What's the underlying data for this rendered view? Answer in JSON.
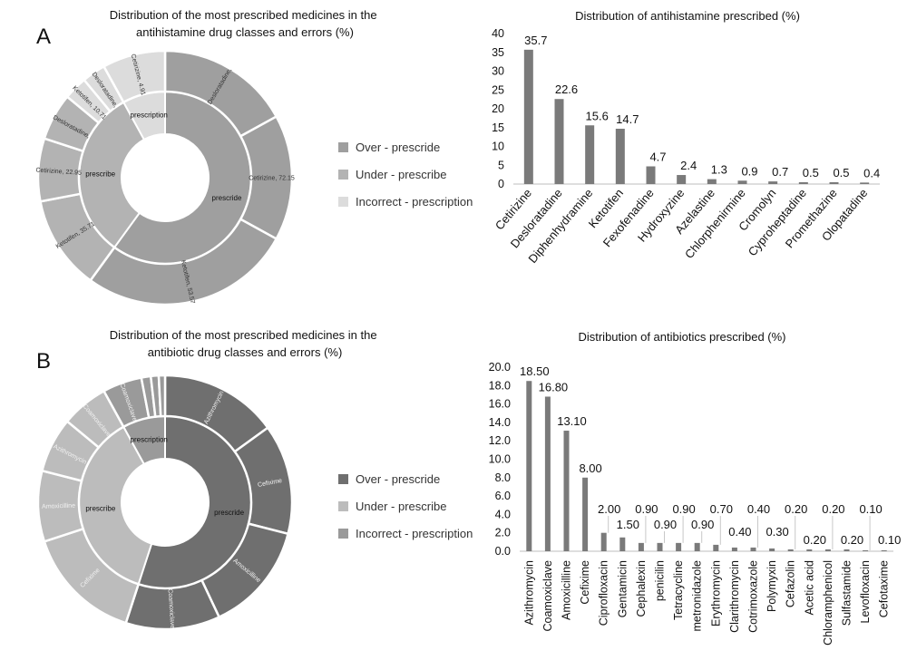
{
  "panel_labels": [
    "A",
    "B"
  ],
  "colors": {
    "over": "#9f9f9f",
    "under": "#b3b3b3",
    "incorrect": "#dcdcdc",
    "over_b": "#6f6f6f",
    "under_b": "#bcbcbc",
    "incorrect_b": "#9a9a9a",
    "bar": "#7a7a7a",
    "axis": "#bdbdbd"
  },
  "legend_items": [
    "Over - prescride",
    "Under - prescribe",
    "Incorrect - prescription"
  ],
  "chart_data": [
    {
      "type": "sunburst",
      "title": "Distribution of the most prescribed medicines in the antihistamine drug classes and errors (%)",
      "inner": [
        {
          "name": "prescride",
          "value": 60
        },
        {
          "name": "prescribe",
          "value": 32
        },
        {
          "name": "prescription",
          "value": 8
        }
      ],
      "outer": [
        {
          "name": "Desloratadine,",
          "value": 17,
          "parent": 0
        },
        {
          "name": "Cetirizine, 72.15",
          "value": 16,
          "parent": 0
        },
        {
          "name": "Ketotifen, 53.57",
          "value": 27,
          "parent": 0
        },
        {
          "name": "Ketotifen, 35.71",
          "value": 12,
          "parent": 1
        },
        {
          "name": "Cetirizine, 22.95",
          "value": 8,
          "parent": 1
        },
        {
          "name": "Desloratadine,",
          "value": 6,
          "parent": 1
        },
        {
          "name": "Ketotifen, 10.71",
          "value": 3,
          "parent": 2
        },
        {
          "name": "Desloratadine,",
          "value": 3,
          "parent": 2
        },
        {
          "name": "Cetirizine, 4.91",
          "value": 8,
          "parent": 2
        }
      ]
    },
    {
      "type": "bar",
      "title": "Distribution of antihistamine prescribed (%)",
      "categories": [
        "Cetirizine",
        "Desloratadine",
        "Diphenhydramine",
        "Ketotifen",
        "Fexofenadine",
        "Hydroxyzine",
        "Azelastine",
        "Chlorphenirmine",
        "Cromolyn",
        "Cyproheptadine",
        "Promethazine",
        "Olopatadine"
      ],
      "values": [
        35.7,
        22.6,
        15.6,
        14.7,
        4.7,
        2.4,
        1.3,
        0.9,
        0.7,
        0.5,
        0.5,
        0.4
      ],
      "data_labels": [
        "35.7",
        "22.6",
        "15.6",
        "14.7",
        "4.7",
        "2.4",
        "1.3",
        "0.9",
        "0.7",
        "0.5",
        "0.5",
        "0.4"
      ],
      "yticks": [
        "0",
        "5",
        "10",
        "15",
        "20",
        "25",
        "30",
        "35",
        "40"
      ],
      "ylim": [
        0,
        40
      ]
    },
    {
      "type": "sunburst",
      "title": "Distribution of the most prescribed medicines in the antibiotic drug classes and errors (%)",
      "inner": [
        {
          "name": "prescride",
          "value": 55
        },
        {
          "name": "prescribe",
          "value": 37
        },
        {
          "name": "prescription",
          "value": 8
        }
      ],
      "outer": [
        {
          "name": "Azithromycin",
          "value": 15,
          "parent": 0
        },
        {
          "name": "Cefixime",
          "value": 14,
          "parent": 0
        },
        {
          "name": "Amoxicilline",
          "value": 14,
          "parent": 0
        },
        {
          "name": "Coamoxiclave",
          "value": 12,
          "parent": 0
        },
        {
          "name": "Cefixime",
          "value": 15,
          "parent": 1
        },
        {
          "name": "Amoxicilline",
          "value": 9,
          "parent": 1
        },
        {
          "name": "Azithromycin",
          "value": 7,
          "parent": 1
        },
        {
          "name": "Coamoxiclave",
          "value": 6,
          "parent": 1
        },
        {
          "name": "Coamoxiclave",
          "value": 5,
          "parent": 2
        },
        {
          "name": "",
          "value": 1.2,
          "parent": 2
        },
        {
          "name": "",
          "value": 1.0,
          "parent": 2
        },
        {
          "name": "",
          "value": 0.8,
          "parent": 2
        }
      ]
    },
    {
      "type": "bar",
      "title": "Distribution of antibiotics prescribed (%)",
      "categories": [
        "Azithromycin",
        "Coamoxiclave",
        "Amoxicilline",
        "Cefixime",
        "Ciprofloxacin",
        "Gentamicin",
        "Cephalexin",
        "penicilin",
        "Tetracycline",
        "metronidazole",
        "Erythromycin",
        "Clarithromycin",
        "Cotrimoxazole",
        "Polymyxin",
        "Cefazolin",
        "Acetic acid",
        "Chloramphenicol",
        "Sulfastamide",
        "Levofloxacin",
        "Cefotaxime"
      ],
      "values": [
        18.5,
        16.8,
        13.1,
        8.0,
        2.0,
        1.5,
        0.9,
        0.9,
        0.9,
        0.9,
        0.7,
        0.4,
        0.4,
        0.3,
        0.2,
        0.2,
        0.2,
        0.2,
        0.1,
        0.1
      ],
      "data_labels": [
        "18.50",
        "16.80",
        "13.10",
        "8.00",
        "2.00",
        "1.50",
        "0.90",
        "0.90",
        "0.90",
        "0.90",
        "0.70",
        "0.40",
        "0.40",
        "0.30",
        "0.20",
        "0.20",
        "0.20",
        "0.20",
        "0.10",
        "0.10"
      ],
      "yticks": [
        "0.0",
        "2.0",
        "4.0",
        "6.0",
        "8.0",
        "10.0",
        "12.0",
        "14.0",
        "16.0",
        "18.0",
        "20.0"
      ],
      "ylim": [
        0,
        20
      ]
    }
  ]
}
